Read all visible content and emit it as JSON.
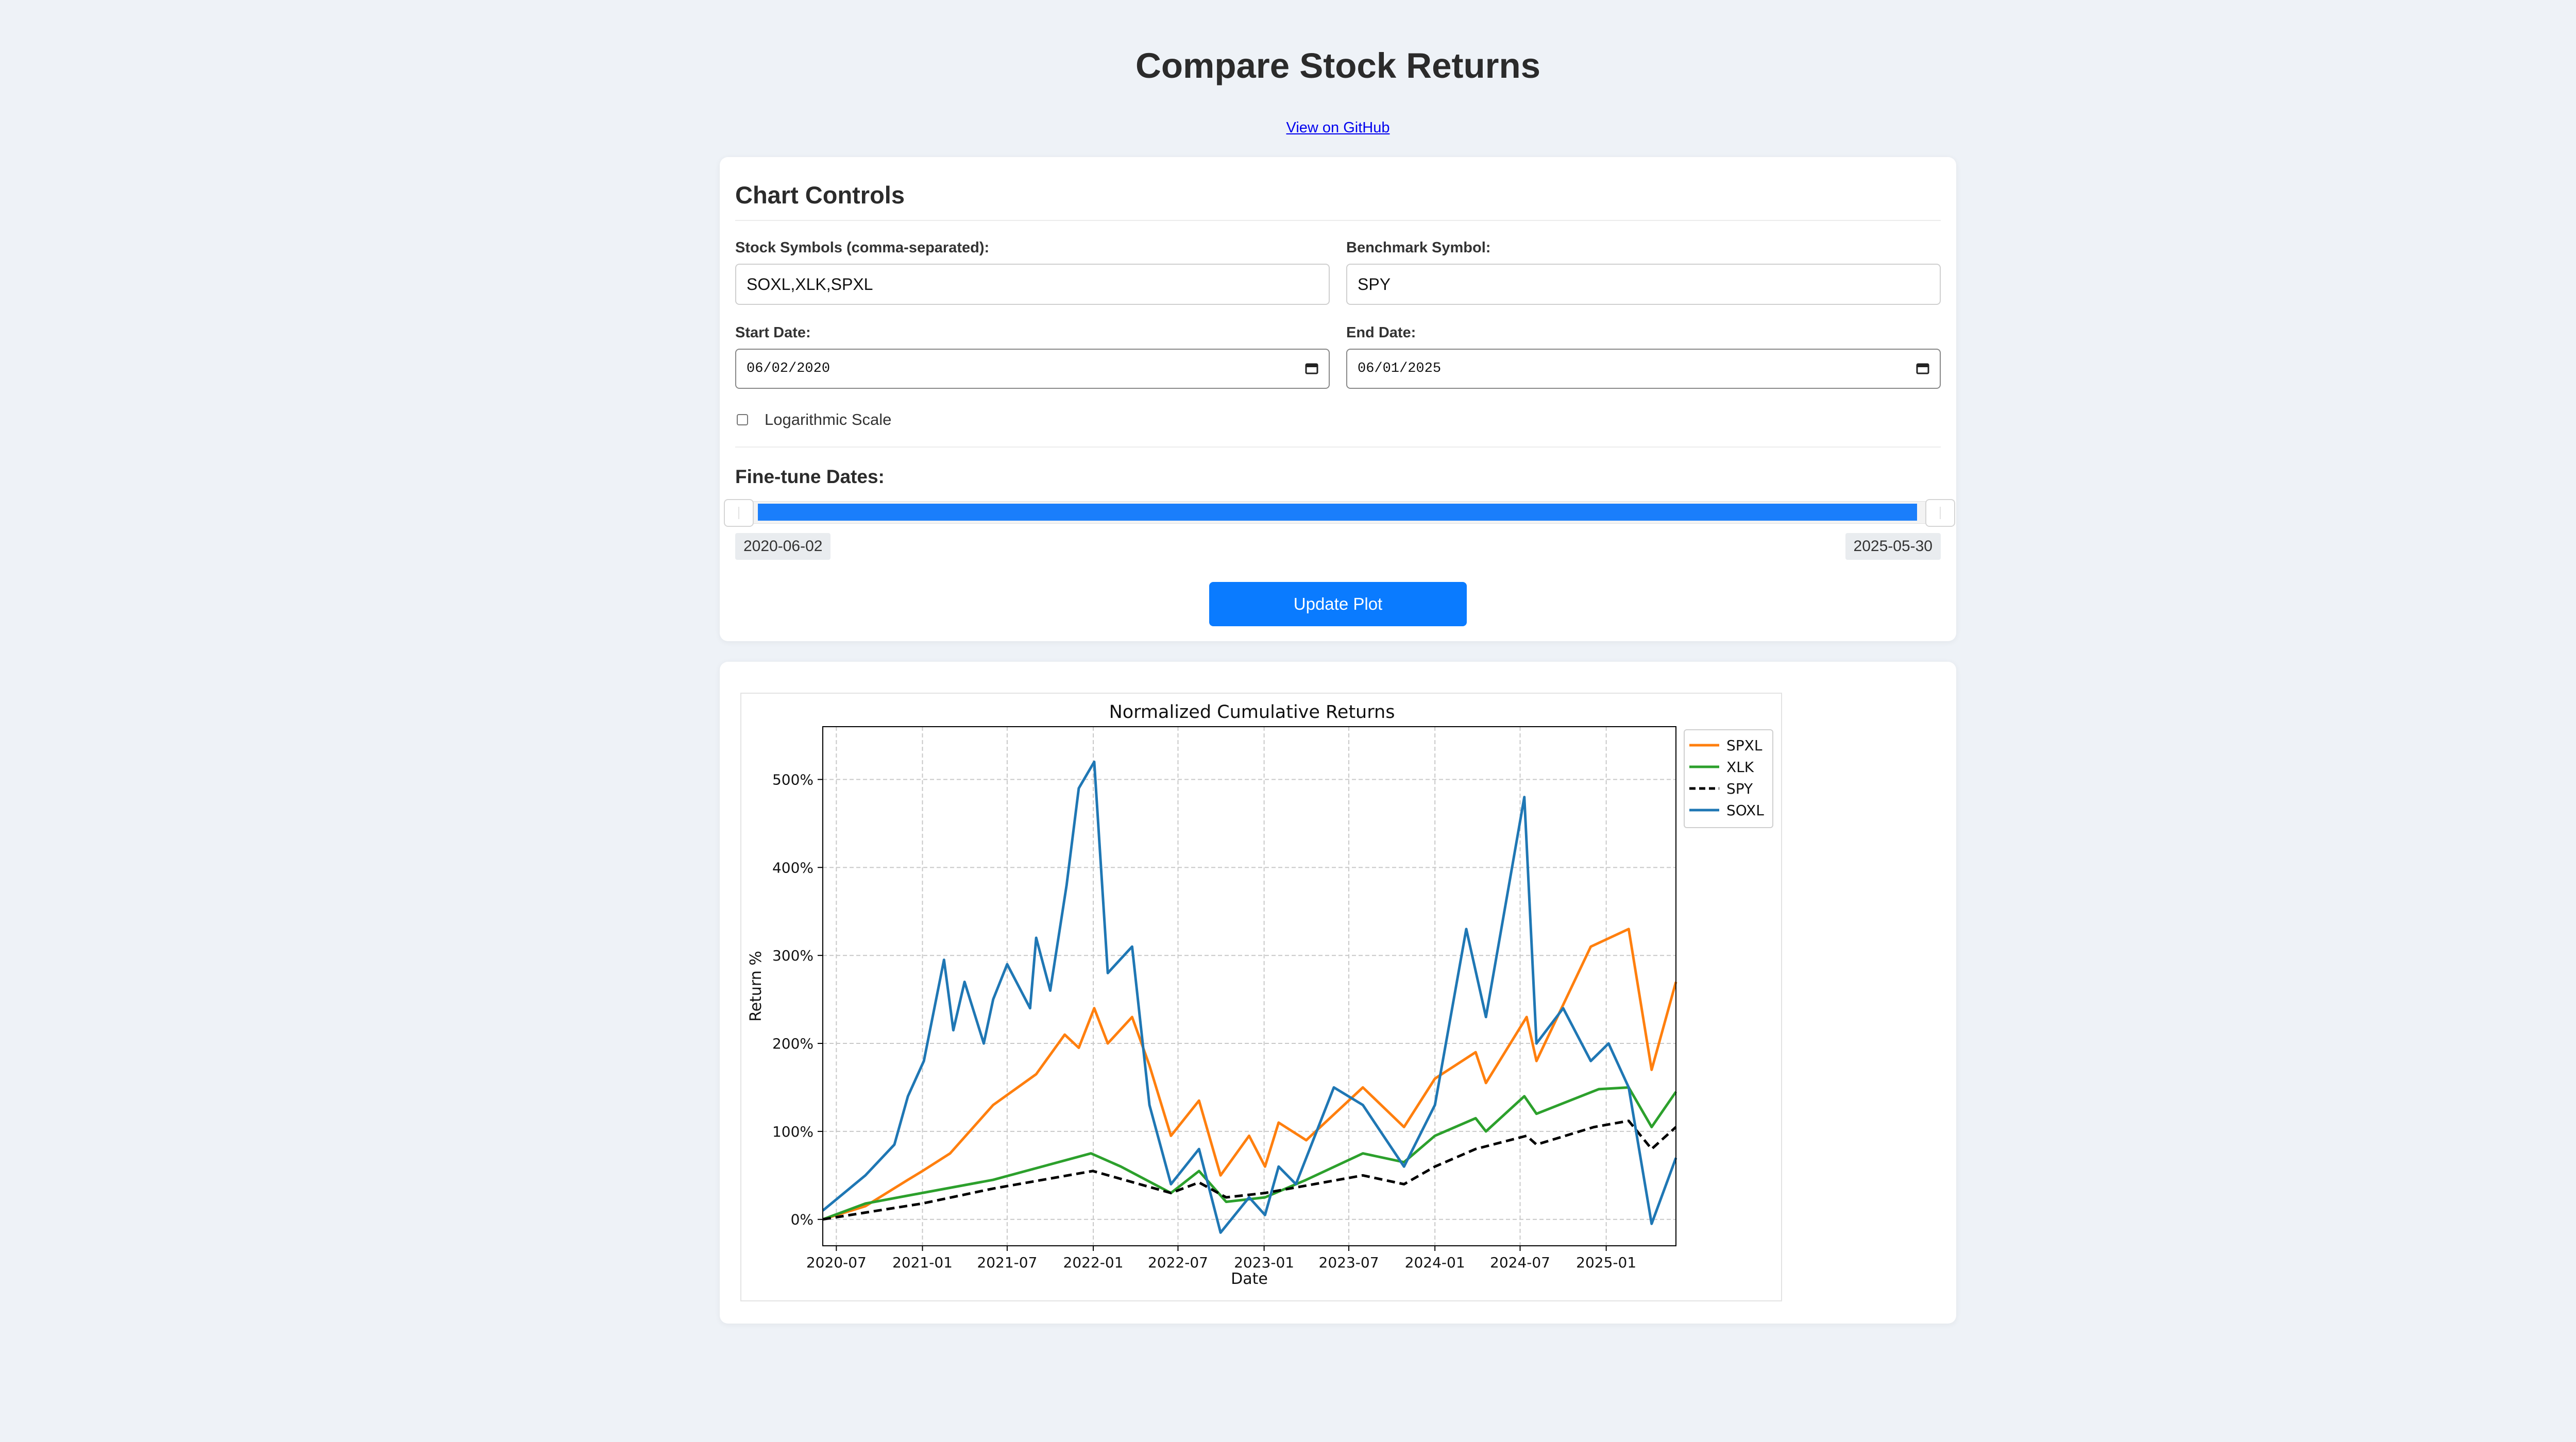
{
  "header": {
    "title": "Compare Stock Returns",
    "github_link": "View on GitHub"
  },
  "controls": {
    "title": "Chart Controls",
    "symbols_label": "Stock Symbols (comma-separated):",
    "symbols_value": "SOXL,XLK,SPXL",
    "benchmark_label": "Benchmark Symbol:",
    "benchmark_value": "SPY",
    "start_label": "Start Date:",
    "start_value": "06/02/2020",
    "end_label": "End Date:",
    "end_value": "06/01/2025",
    "log_label": "Logarithmic Scale",
    "log_checked": false,
    "finetune_title": "Fine-tune Dates:",
    "range_start": "2020-06-02",
    "range_end": "2025-05-30",
    "range_start_fraction": 0.0,
    "range_end_fraction": 1.0,
    "update_button": "Update Plot",
    "accent_color": "#0a7bff"
  },
  "icons": [
    "calendar-icon"
  ],
  "chart_data": {
    "type": "line",
    "title": "Normalized Cumulative Returns",
    "xlabel": "Date",
    "ylabel": "Return %",
    "x_ticks": [
      "2020-07",
      "2021-01",
      "2021-07",
      "2022-01",
      "2022-07",
      "2023-01",
      "2023-07",
      "2024-01",
      "2024-07",
      "2025-01"
    ],
    "y_ticks": [
      "0%",
      "100%",
      "200%",
      "300%",
      "400%",
      "500%"
    ],
    "xlim": [
      "2020-06-02",
      "2025-05-30"
    ],
    "ylim": [
      -30,
      560
    ],
    "grid": true,
    "legend_position": "outside-right-top",
    "series": [
      {
        "name": "SPXL",
        "color": "#ff7f0e",
        "dash": "solid",
        "points": [
          [
            "2020-06-02",
            0
          ],
          [
            "2020-09-01",
            15
          ],
          [
            "2020-12-01",
            45
          ],
          [
            "2021-01-01",
            55
          ],
          [
            "2021-03-01",
            75
          ],
          [
            "2021-06-01",
            130
          ],
          [
            "2021-09-01",
            165
          ],
          [
            "2021-11-01",
            210
          ],
          [
            "2021-12-01",
            195
          ],
          [
            "2022-01-03",
            240
          ],
          [
            "2022-02-01",
            200
          ],
          [
            "2022-03-25",
            230
          ],
          [
            "2022-05-01",
            175
          ],
          [
            "2022-06-16",
            95
          ],
          [
            "2022-08-15",
            135
          ],
          [
            "2022-09-30",
            50
          ],
          [
            "2022-11-30",
            95
          ],
          [
            "2023-01-03",
            60
          ],
          [
            "2023-02-01",
            110
          ],
          [
            "2023-04-01",
            90
          ],
          [
            "2023-07-31",
            150
          ],
          [
            "2023-10-27",
            105
          ],
          [
            "2024-01-01",
            160
          ],
          [
            "2024-03-28",
            190
          ],
          [
            "2024-04-19",
            155
          ],
          [
            "2024-07-15",
            230
          ],
          [
            "2024-08-05",
            180
          ],
          [
            "2024-11-29",
            310
          ],
          [
            "2025-02-18",
            330
          ],
          [
            "2025-04-08",
            170
          ],
          [
            "2025-05-30",
            270
          ]
        ]
      },
      {
        "name": "XLK",
        "color": "#2ca02c",
        "dash": "solid",
        "points": [
          [
            "2020-06-02",
            0
          ],
          [
            "2020-09-01",
            18
          ],
          [
            "2020-12-31",
            30
          ],
          [
            "2021-06-01",
            45
          ],
          [
            "2021-12-27",
            75
          ],
          [
            "2022-03-01",
            60
          ],
          [
            "2022-06-16",
            30
          ],
          [
            "2022-08-15",
            55
          ],
          [
            "2022-10-12",
            20
          ],
          [
            "2023-01-03",
            25
          ],
          [
            "2023-04-01",
            45
          ],
          [
            "2023-07-31",
            75
          ],
          [
            "2023-10-27",
            65
          ],
          [
            "2024-01-01",
            95
          ],
          [
            "2024-03-28",
            115
          ],
          [
            "2024-04-19",
            100
          ],
          [
            "2024-07-10",
            140
          ],
          [
            "2024-08-05",
            120
          ],
          [
            "2024-12-16",
            148
          ],
          [
            "2025-02-18",
            150
          ],
          [
            "2025-04-08",
            105
          ],
          [
            "2025-05-30",
            145
          ]
        ]
      },
      {
        "name": "SPY",
        "color": "#000000",
        "dash": "dashed",
        "points": [
          [
            "2020-06-02",
            0
          ],
          [
            "2020-12-31",
            18
          ],
          [
            "2021-06-01",
            35
          ],
          [
            "2021-12-31",
            55
          ],
          [
            "2022-06-16",
            30
          ],
          [
            "2022-08-15",
            42
          ],
          [
            "2022-10-12",
            25
          ],
          [
            "2023-01-03",
            30
          ],
          [
            "2023-07-31",
            50
          ],
          [
            "2023-10-27",
            40
          ],
          [
            "2024-01-01",
            60
          ],
          [
            "2024-03-28",
            80
          ],
          [
            "2024-07-15",
            95
          ],
          [
            "2024-08-05",
            85
          ],
          [
            "2024-12-06",
            105
          ],
          [
            "2025-02-18",
            112
          ],
          [
            "2025-04-08",
            80
          ],
          [
            "2025-05-30",
            105
          ]
        ]
      },
      {
        "name": "SOXL",
        "color": "#1f77b4",
        "dash": "solid",
        "points": [
          [
            "2020-06-02",
            10
          ],
          [
            "2020-09-01",
            50
          ],
          [
            "2020-11-02",
            85
          ],
          [
            "2020-12-01",
            140
          ],
          [
            "2021-01-04",
            180
          ],
          [
            "2021-02-16",
            295
          ],
          [
            "2021-03-08",
            215
          ],
          [
            "2021-04-01",
            270
          ],
          [
            "2021-05-12",
            200
          ],
          [
            "2021-06-01",
            250
          ],
          [
            "2021-07-01",
            290
          ],
          [
            "2021-08-19",
            240
          ],
          [
            "2021-09-01",
            320
          ],
          [
            "2021-10-01",
            260
          ],
          [
            "2021-11-05",
            380
          ],
          [
            "2021-12-01",
            490
          ],
          [
            "2022-01-03",
            520
          ],
          [
            "2022-02-01",
            280
          ],
          [
            "2022-03-25",
            310
          ],
          [
            "2022-05-01",
            130
          ],
          [
            "2022-06-16",
            40
          ],
          [
            "2022-08-15",
            80
          ],
          [
            "2022-09-30",
            -15
          ],
          [
            "2022-11-30",
            25
          ],
          [
            "2023-01-03",
            5
          ],
          [
            "2023-02-01",
            60
          ],
          [
            "2023-03-10",
            40
          ],
          [
            "2023-05-30",
            150
          ],
          [
            "2023-07-31",
            130
          ],
          [
            "2023-10-27",
            60
          ],
          [
            "2024-01-01",
            130
          ],
          [
            "2024-03-08",
            330
          ],
          [
            "2024-04-19",
            230
          ],
          [
            "2024-07-10",
            480
          ],
          [
            "2024-08-05",
            200
          ],
          [
            "2024-10-01",
            240
          ],
          [
            "2024-11-29",
            180
          ],
          [
            "2025-01-06",
            200
          ],
          [
            "2025-02-18",
            150
          ],
          [
            "2025-04-08",
            -5
          ],
          [
            "2025-05-30",
            70
          ]
        ]
      }
    ]
  }
}
